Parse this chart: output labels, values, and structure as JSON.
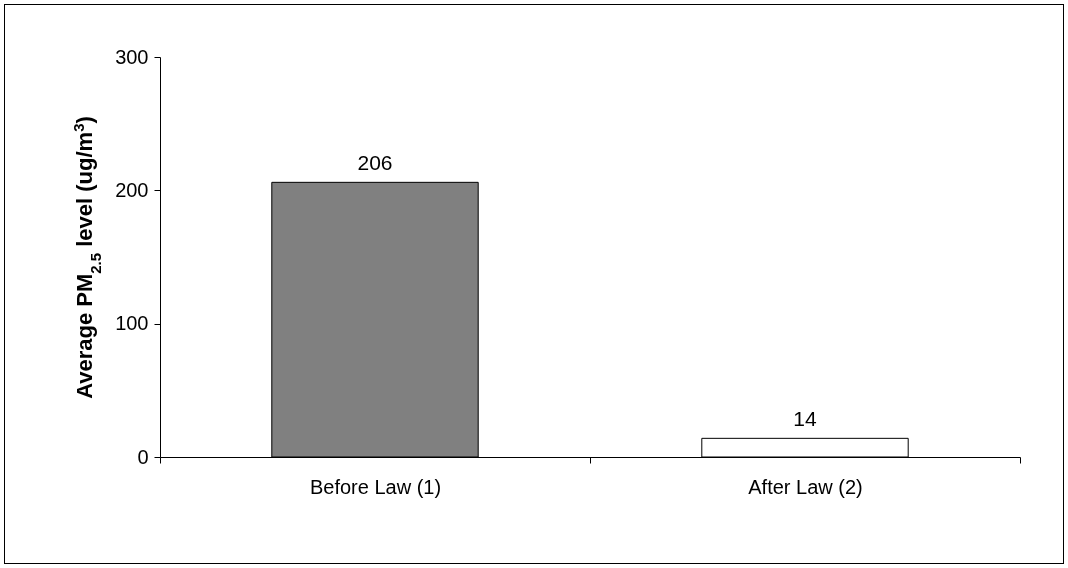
{
  "chart_data": {
    "type": "bar",
    "ylabel": "Average PM$_{2.5}$ level (ug/m$^{3}$)",
    "categories": [
      "Before Law (1)",
      "After Law (2)"
    ],
    "values": [
      206,
      14
    ],
    "colors": [
      "#808080",
      "#ffffff"
    ],
    "ylim": [
      0,
      300
    ],
    "yticks": [
      0,
      100,
      200,
      300
    ],
    "data_labels": true
  }
}
